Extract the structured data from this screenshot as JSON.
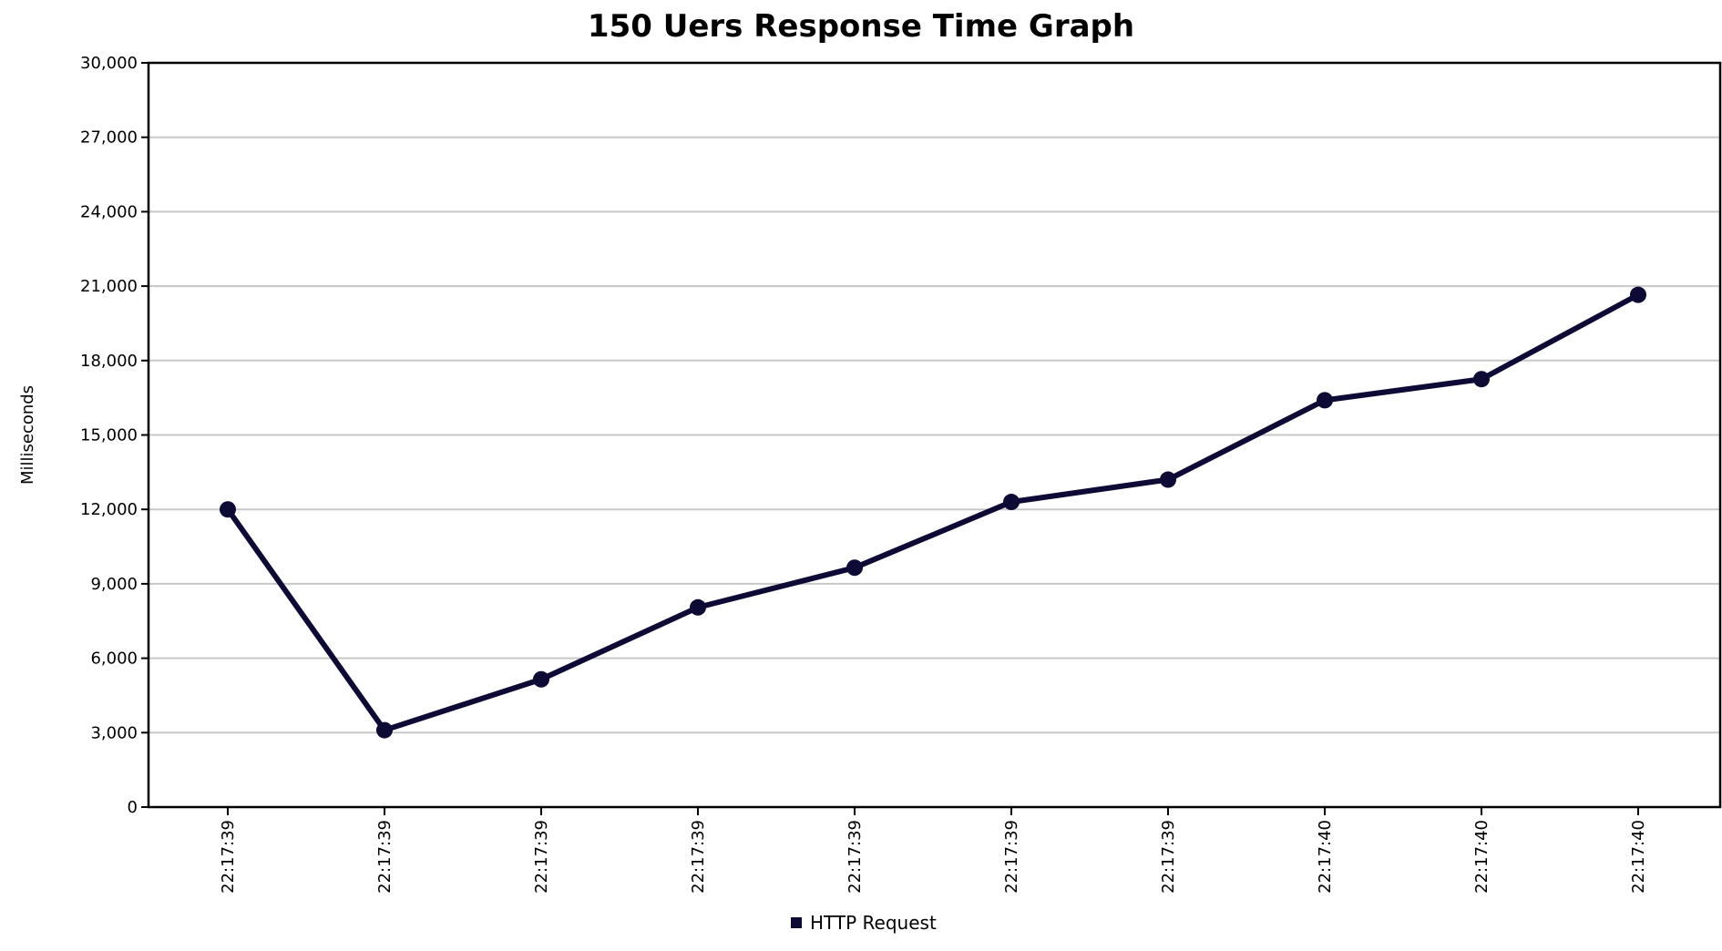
{
  "chart_data": {
    "type": "line",
    "title": "150 Uers Response Time Graph",
    "xlabel": "",
    "ylabel": "Milliseconds",
    "x": [
      "22:17:39",
      "22:17:39",
      "22:17:39",
      "22:17:39",
      "22:17:39",
      "22:17:39",
      "22:17:39",
      "22:17:40",
      "22:17:40",
      "22:17:40"
    ],
    "series": [
      {
        "name": "HTTP Request",
        "values": [
          12000,
          3100,
          5150,
          8050,
          9650,
          12300,
          13200,
          16400,
          17250,
          20650
        ],
        "color": "#0d0a35"
      }
    ],
    "ylim": [
      0,
      30000
    ],
    "yticks": [
      0,
      3000,
      6000,
      9000,
      12000,
      15000,
      18000,
      21000,
      24000,
      27000,
      30000
    ],
    "ytick_labels": [
      "0",
      "3,000",
      "6,000",
      "9,000",
      "12,000",
      "15,000",
      "18,000",
      "21,000",
      "24,000",
      "27,000",
      "30,000"
    ],
    "grid": true,
    "legend_position": "bottom",
    "colors": {
      "line": "#0d0a35",
      "grid": "#c8c8c8",
      "axis": "#000000"
    }
  }
}
